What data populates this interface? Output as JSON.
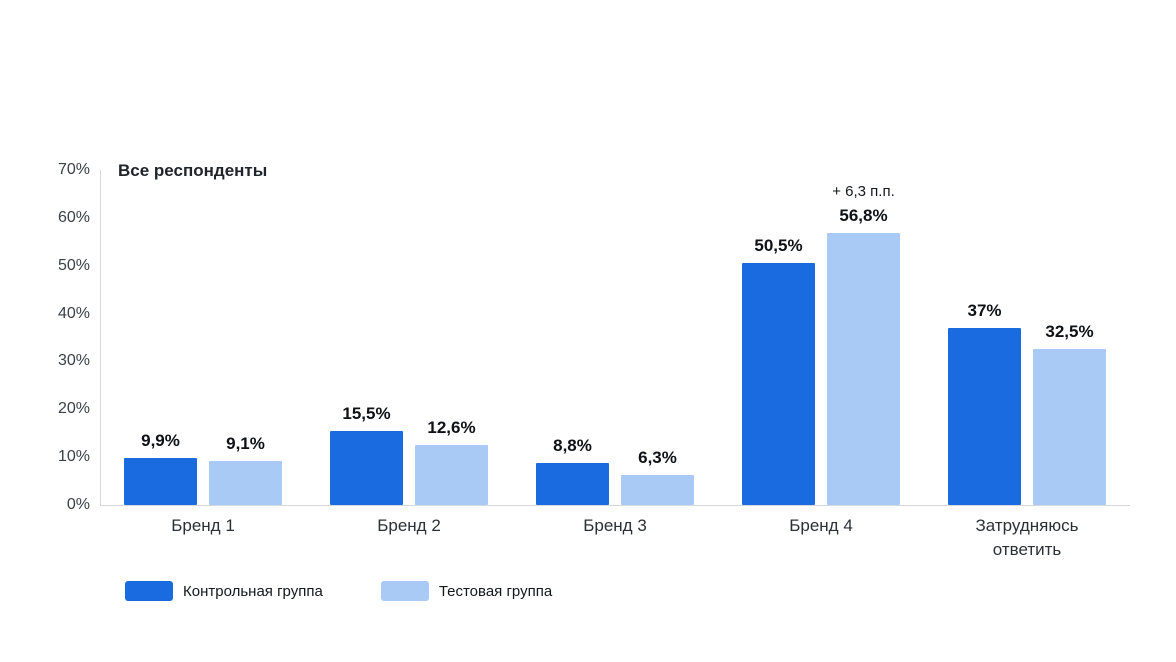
{
  "chart_data": {
    "type": "bar",
    "title": "Все респонденты",
    "categories": [
      "Бренд 1",
      "Бренд 2",
      "Бренд 3",
      "Бренд 4",
      "Затрудняюсь ответить"
    ],
    "series": [
      {
        "name": "Контрольная группа",
        "color": "#1a6be0",
        "values": [
          9.9,
          15.5,
          8.8,
          50.5,
          37
        ],
        "labels": [
          "9,9%",
          "15,5%",
          "8,8%",
          "50,5%",
          "37%"
        ]
      },
      {
        "name": "Тестовая группа",
        "color": "#a8caf5",
        "values": [
          9.1,
          12.6,
          6.3,
          56.8,
          32.5
        ],
        "labels": [
          "9,1%",
          "12,6%",
          "6,3%",
          "56,8%",
          "32,5%"
        ]
      }
    ],
    "annotations": [
      {
        "category_index": 3,
        "series_index": 1,
        "text": "+ 6,3 п.п."
      }
    ],
    "y_ticks": [
      "0%",
      "10%",
      "20%",
      "30%",
      "40%",
      "50%",
      "60%",
      "70%"
    ],
    "ylim": [
      0,
      70
    ],
    "grid": false,
    "legend_position": "bottom-left"
  }
}
